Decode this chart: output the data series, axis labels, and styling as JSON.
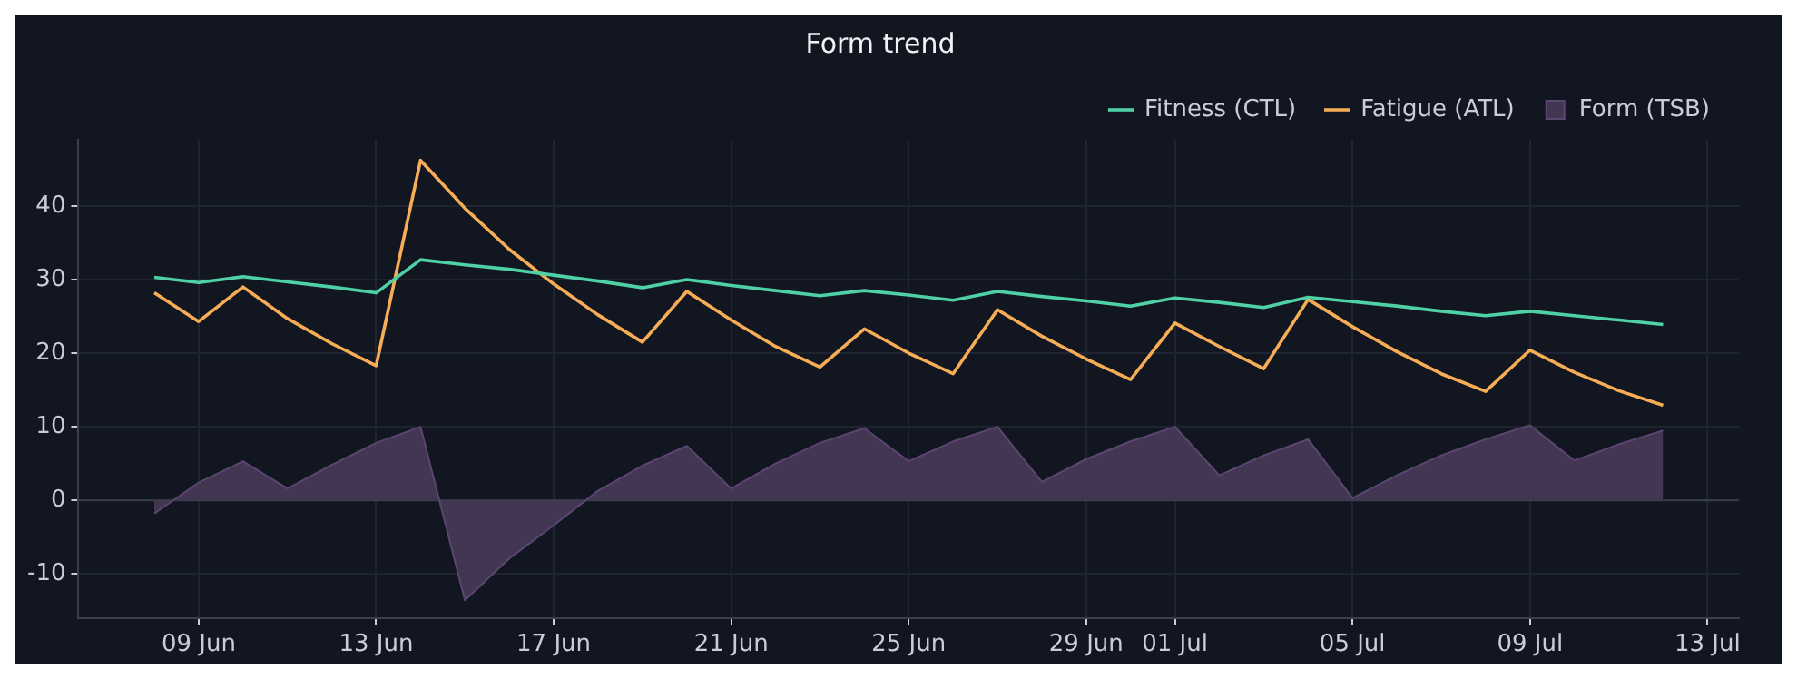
{
  "chart_data": {
    "type": "line",
    "title": "Form trend",
    "x": [
      "--06-08",
      "--06-09",
      "--06-10",
      "--06-11",
      "--06-12",
      "--06-13",
      "--06-14",
      "--06-15",
      "--06-16",
      "--06-17",
      "--06-18",
      "--06-19",
      "--06-20",
      "--06-21",
      "--06-22",
      "--06-23",
      "--06-24",
      "--06-25",
      "--06-26",
      "--06-27",
      "--06-28",
      "--06-29",
      "--06-30",
      "--07-01",
      "--07-02",
      "--07-03",
      "--07-04",
      "--07-05",
      "--07-06",
      "--07-07",
      "--07-08",
      "--07-09",
      "--07-10",
      "--07-11",
      "--07-12"
    ],
    "series": [
      {
        "name": "Fitness (CTL)",
        "color": "#4fd1a5",
        "values": [
          30.3,
          29.6,
          30.4,
          29.7,
          29.0,
          28.2,
          32.7,
          32.0,
          31.4,
          30.6,
          29.8,
          28.9,
          30.0,
          29.2,
          28.5,
          27.8,
          28.5,
          27.9,
          27.2,
          28.4,
          27.7,
          27.1,
          26.4,
          27.5,
          26.9,
          26.2,
          27.6,
          27.0,
          26.4,
          25.7,
          25.1,
          25.7,
          25.1,
          24.5,
          23.9
        ]
      },
      {
        "name": "Fatigue (ATL)",
        "color": "#f6ad55",
        "values": [
          28.2,
          24.3,
          29.0,
          24.7,
          21.3,
          18.3,
          46.2,
          39.7,
          34.1,
          29.4,
          25.2,
          21.5,
          28.4,
          24.5,
          20.9,
          18.1,
          23.3,
          20.0,
          17.2,
          25.9,
          22.3,
          19.2,
          16.4,
          24.1,
          20.9,
          17.9,
          27.3,
          23.6,
          20.2,
          17.2,
          14.8,
          20.4,
          17.4,
          14.9,
          12.9
        ]
      },
      {
        "name": "Form (TSB)",
        "type": "area",
        "color": "#433653",
        "values": [
          -1.8,
          2.4,
          5.3,
          1.6,
          4.8,
          7.8,
          10.0,
          -13.6,
          -7.9,
          -3.4,
          1.3,
          4.7,
          7.4,
          1.6,
          5.0,
          7.8,
          9.8,
          5.3,
          8.0,
          10.0,
          2.5,
          5.6,
          8.0,
          10.0,
          3.4,
          6.1,
          8.3,
          0.3,
          3.4,
          6.1,
          8.3,
          10.2,
          5.4,
          7.6,
          9.5
        ]
      }
    ],
    "xlim": [
      "--06-06T07:00",
      "--07-13T17:00"
    ],
    "xticks": [
      {
        "value": "--06-09",
        "label": "09 Jun"
      },
      {
        "value": "--06-13",
        "label": "13 Jun"
      },
      {
        "value": "--06-17",
        "label": "17 Jun"
      },
      {
        "value": "--06-21",
        "label": "21 Jun"
      },
      {
        "value": "--06-25",
        "label": "25 Jun"
      },
      {
        "value": "--06-29",
        "label": "29 Jun"
      },
      {
        "value": "--07-01",
        "label": "01 Jul"
      },
      {
        "value": "--07-05",
        "label": "05 Jul"
      },
      {
        "value": "--07-09",
        "label": "09 Jul"
      },
      {
        "value": "--07-13",
        "label": "13 Jul"
      }
    ],
    "ylim": [
      -16,
      49
    ],
    "yticks": [
      -10,
      0,
      10,
      20,
      30,
      40
    ],
    "ref_lines": [
      {
        "axis": "y",
        "value": 0,
        "color": "#3a3f4b"
      }
    ],
    "grid": true,
    "legend": "top right",
    "marker": "none",
    "line_style": "solid"
  }
}
